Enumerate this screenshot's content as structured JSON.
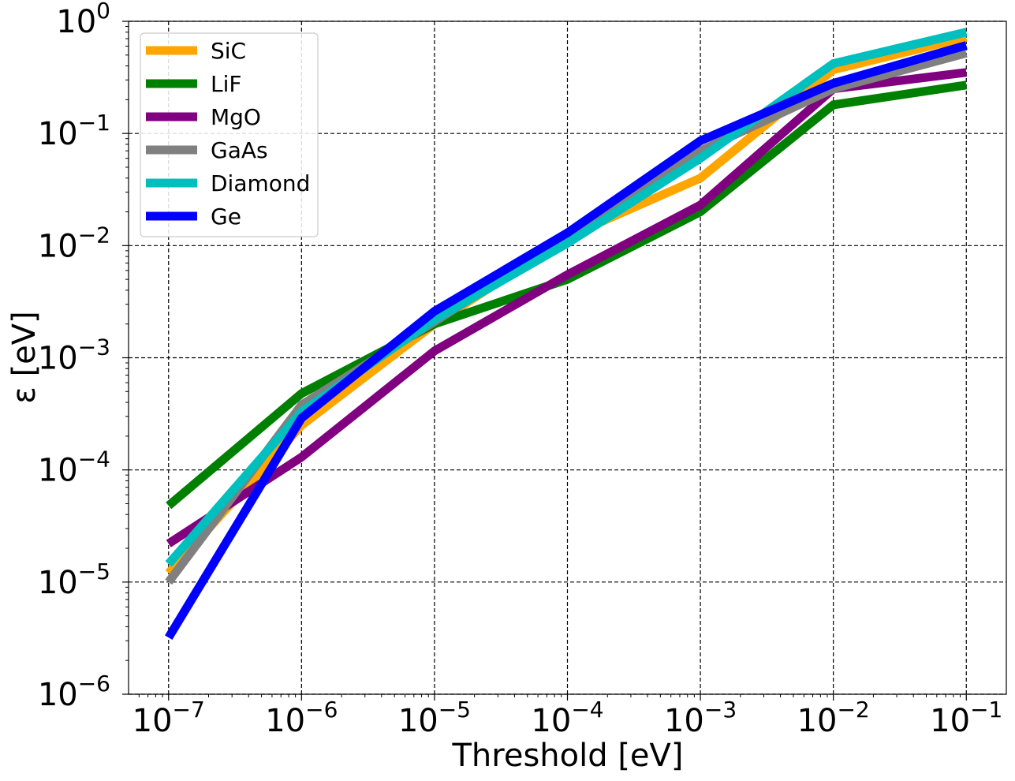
{
  "chart_data": {
    "type": "line",
    "title": "",
    "xlabel": "Threshold [eV]",
    "ylabel": "ε [eV]",
    "xscale": "log",
    "yscale": "log",
    "x": [
      1e-07,
      1e-06,
      1e-05,
      0.0001,
      0.001,
      0.01,
      0.1
    ],
    "xlim": [
      5e-08,
      0.2
    ],
    "ylim": [
      1e-06,
      1
    ],
    "grid": true,
    "legend_position": "top-left",
    "x_ticks": [
      {
        "value": 1e-07,
        "base": "10",
        "exp": "−7"
      },
      {
        "value": 1e-06,
        "base": "10",
        "exp": "−6"
      },
      {
        "value": 1e-05,
        "base": "10",
        "exp": "−5"
      },
      {
        "value": 0.0001,
        "base": "10",
        "exp": "−4"
      },
      {
        "value": 0.001,
        "base": "10",
        "exp": "−3"
      },
      {
        "value": 0.01,
        "base": "10",
        "exp": "−2"
      },
      {
        "value": 0.1,
        "base": "10",
        "exp": "−1"
      }
    ],
    "y_ticks": [
      {
        "value": 1e-06,
        "base": "10",
        "exp": "−6"
      },
      {
        "value": 1e-05,
        "base": "10",
        "exp": "−5"
      },
      {
        "value": 0.0001,
        "base": "10",
        "exp": "−4"
      },
      {
        "value": 0.001,
        "base": "10",
        "exp": "−3"
      },
      {
        "value": 0.01,
        "base": "10",
        "exp": "−2"
      },
      {
        "value": 0.1,
        "base": "10",
        "exp": "−1"
      },
      {
        "value": 1,
        "base": "10",
        "exp": "0"
      }
    ],
    "series": [
      {
        "name": "SiC",
        "color": "#FFA500",
        "values": [
          1.2e-05,
          0.00025,
          0.002,
          0.012,
          0.04,
          0.37,
          0.72
        ]
      },
      {
        "name": "LiF",
        "color": "#008000",
        "values": [
          4.8e-05,
          0.00048,
          0.002,
          0.005,
          0.02,
          0.18,
          0.27
        ]
      },
      {
        "name": "MgO",
        "color": "#800080",
        "values": [
          2.2e-05,
          0.00013,
          0.00115,
          0.0055,
          0.023,
          0.25,
          0.35
        ]
      },
      {
        "name": "GaAs",
        "color": "#808080",
        "values": [
          1e-05,
          0.00038,
          0.0021,
          0.012,
          0.07,
          0.25,
          0.52
        ]
      },
      {
        "name": "Diamond",
        "color": "#00BFBF",
        "values": [
          1.45e-05,
          0.00033,
          0.0022,
          0.0105,
          0.06,
          0.42,
          0.8
        ]
      },
      {
        "name": "Ge",
        "color": "#0000FF",
        "values": [
          3.2e-06,
          0.00029,
          0.0026,
          0.013,
          0.086,
          0.28,
          0.61
        ]
      }
    ]
  }
}
